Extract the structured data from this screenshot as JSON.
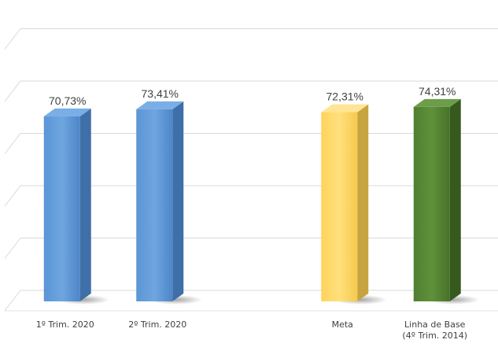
{
  "chart_data": {
    "type": "bar",
    "title": "",
    "xlabel": "",
    "ylabel": "",
    "categories": [
      [
        "1º Trim. 2020"
      ],
      [
        "2º Trim. 2020"
      ],
      [],
      [
        "Meta"
      ],
      [
        "Linha de Base",
        "(4º Trim. 2014)"
      ]
    ],
    "values": [
      70.73,
      73.41,
      null,
      72.31,
      74.31
    ],
    "data_labels": [
      "70,73%",
      "73,41%",
      "",
      "72,31%",
      "74,31%"
    ],
    "colors": [
      "#5b9bd5",
      "#5b9bd5",
      "",
      "#ffd966",
      "#548235"
    ],
    "ylim": [
      0,
      100
    ],
    "grid": true,
    "legend": "none",
    "style": "3d-column"
  }
}
